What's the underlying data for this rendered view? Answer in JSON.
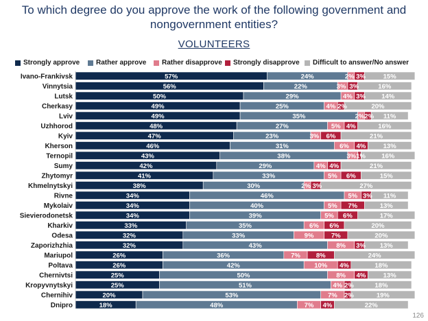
{
  "page": {
    "title_line1": "To which degree do you approve the work of the following government and",
    "title_line2": "nongovernment entities?",
    "subtitle": "VOLUNTEERS",
    "page_number": "126"
  },
  "chart_data": {
    "type": "bar",
    "orientation": "horizontal",
    "stacked": true,
    "categories": [
      "Ivano-Frankivsk",
      "Vinnytsia",
      "Lutsk",
      "Cherkasy",
      "Lviv",
      "Uzhhorod",
      "Kyiv",
      "Kherson",
      "Ternopil",
      "Sumy",
      "Zhytomyr",
      "Khmelnytskyi",
      "Rivne",
      "Mykolaiv",
      "Sievierodonetsk",
      "Kharkiv",
      "Odesa",
      "Zaporizhzhia",
      "Mariupol",
      "Poltava",
      "Chernivtsi",
      "Kropyvnytskyi",
      "Chernihiv",
      "Dnipro"
    ],
    "series": [
      {
        "name": "Strongly approve",
        "color": "#0f2a4d",
        "values": [
          57,
          56,
          50,
          49,
          49,
          48,
          47,
          46,
          43,
          42,
          41,
          38,
          34,
          34,
          34,
          33,
          32,
          32,
          26,
          26,
          25,
          25,
          20,
          18
        ]
      },
      {
        "name": "Rather approve",
        "color": "#5f7a93",
        "values": [
          24,
          22,
          29,
          25,
          35,
          27,
          23,
          31,
          38,
          29,
          33,
          30,
          46,
          40,
          39,
          35,
          33,
          43,
          36,
          42,
          50,
          51,
          53,
          48
        ]
      },
      {
        "name": "Rather disapprove",
        "color": "#e07c8c",
        "values": [
          2,
          3,
          4,
          4,
          2,
          5,
          3,
          6,
          3,
          4,
          5,
          2,
          5,
          5,
          5,
          6,
          9,
          8,
          7,
          10,
          8,
          4,
          7,
          7
        ]
      },
      {
        "name": "Strongly disapprove",
        "color": "#b11f3c",
        "values": [
          3,
          3,
          3,
          2,
          2,
          4,
          6,
          4,
          1,
          4,
          6,
          3,
          3,
          7,
          6,
          6,
          7,
          3,
          8,
          4,
          4,
          2,
          2,
          4
        ]
      },
      {
        "name": "Difficult to answer/No answer",
        "color": "#b5b5b5",
        "values": [
          15,
          16,
          14,
          20,
          11,
          16,
          21,
          13,
          16,
          21,
          15,
          27,
          11,
          13,
          17,
          20,
          20,
          13,
          24,
          18,
          13,
          18,
          19,
          22
        ]
      }
    ],
    "labels": [
      [
        "57%",
        "24%",
        "2%",
        "3%",
        "15%"
      ],
      [
        "56%",
        "22%",
        "3%",
        "3%",
        "16%"
      ],
      [
        "50%",
        "29%",
        "4%",
        "3%",
        "14%"
      ],
      [
        "49%",
        "25%",
        "4%",
        "2%",
        "20%"
      ],
      [
        "49%",
        "35%",
        "2%",
        "2%",
        "11%"
      ],
      [
        "48%",
        "27%",
        "5%",
        "4%",
        "16%"
      ],
      [
        "47%",
        "23%",
        "3%",
        "6%",
        "21%"
      ],
      [
        "46%",
        "31%",
        "6%",
        "4%",
        "13%"
      ],
      [
        "43%",
        "38%",
        "3%",
        "1%",
        "16%"
      ],
      [
        "42%",
        "29%",
        "4%",
        "4%",
        "21%"
      ],
      [
        "41%",
        "33%",
        "5%",
        "6%",
        "15%"
      ],
      [
        "38%",
        "30%",
        "2%",
        "3%",
        "27%"
      ],
      [
        "34%",
        "46%",
        "5%",
        "3%",
        "11%"
      ],
      [
        "34%",
        "40%",
        "5%",
        "7%",
        "13%"
      ],
      [
        "34%",
        "39%",
        "5%",
        "6%",
        "17%"
      ],
      [
        "33%",
        "35%",
        "6%",
        "6%",
        "20%"
      ],
      [
        "32%",
        "33%",
        "9%",
        "7%",
        "20%"
      ],
      [
        "32%",
        "43%",
        "8%",
        "3%",
        "13%"
      ],
      [
        "26%",
        "36%",
        "7%",
        "8%",
        "24%"
      ],
      [
        "26%",
        "42%",
        "10%",
        "4%",
        "18%"
      ],
      [
        "25%",
        "50%",
        "8%",
        "4%",
        "13%"
      ],
      [
        "25%",
        "51%",
        "4%",
        "2%",
        "18%"
      ],
      [
        "20%",
        "53%",
        "7%",
        "2%",
        "19%"
      ],
      [
        "18%",
        "48%",
        "7%",
        "4%",
        "22%"
      ]
    ],
    "xlim": [
      0,
      100
    ],
    "x_ticks": [
      "0%",
      "10%",
      "20%",
      "30%",
      "40%",
      "50%",
      "60%",
      "70%",
      "80%",
      "90%",
      "100%"
    ],
    "legend_position": "top",
    "grid": false
  }
}
